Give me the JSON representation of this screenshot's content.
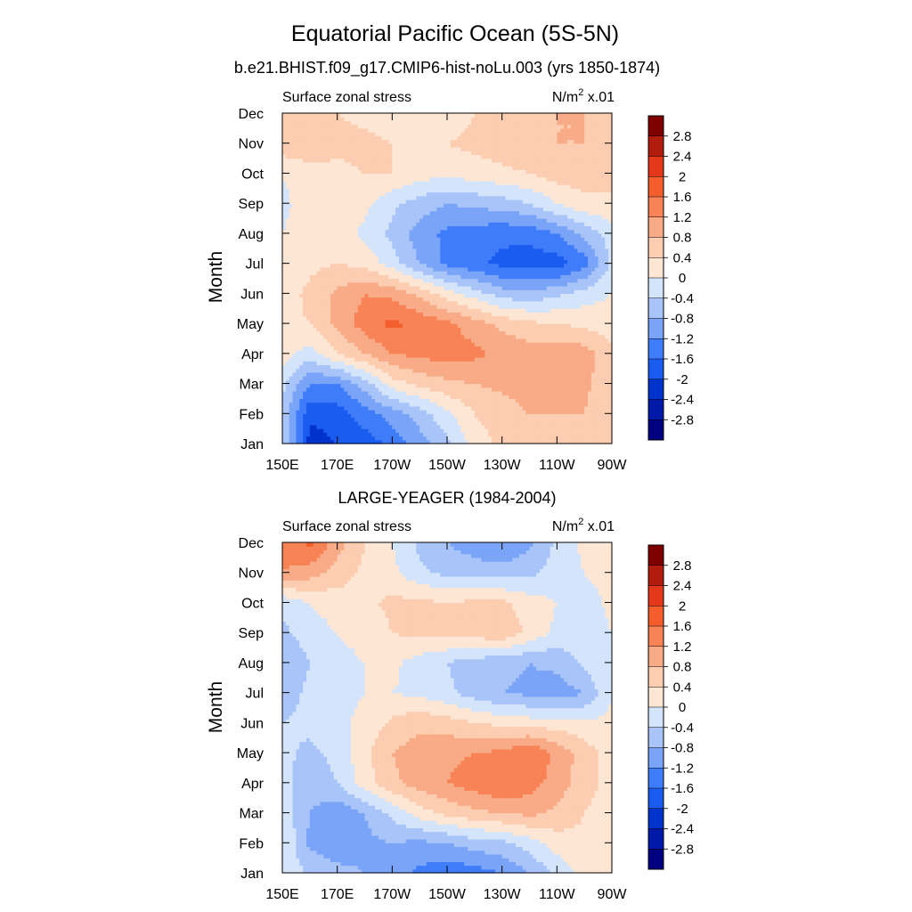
{
  "figure": {
    "title": "Equatorial Pacific Ocean (5S-5N)"
  },
  "colors": {
    "levels": [
      -2.8,
      -2.4,
      -2.0,
      -1.6,
      -1.2,
      -0.8,
      -0.4,
      0,
      0.4,
      0.8,
      1.2,
      1.6,
      2.0,
      2.4,
      2.8
    ],
    "labels": [
      "2.8",
      "2.4",
      "2",
      "1.6",
      "1.2",
      "0.8",
      "0.4",
      "0",
      "-0.4",
      "-0.8",
      "-1.2",
      "-1.6",
      "-2",
      "-2.4",
      "-2.8"
    ],
    "fills": [
      "#000080",
      "#0019a8",
      "#0033cc",
      "#1a5cf0",
      "#3f7cfa",
      "#7aa4f7",
      "#a8c4f8",
      "#d3e4fb",
      "#fde6d4",
      "#fccdb0",
      "#f8ab86",
      "#f78356",
      "#f35e2c",
      "#e5381a",
      "#b21c0c",
      "#800000"
    ]
  },
  "chart_data": [
    {
      "type": "heatmap",
      "subtitle": "b.e21.BHIST.f09_g17.CMIP6-hist-noLu.003 (yrs 1850-1874)",
      "left_label": "Surface zonal stress",
      "right_label_base": "N/m",
      "right_label_sup": "2",
      "right_label_tail": " x.01",
      "ylabel": "Month",
      "x_ticks": [
        "150E",
        "170E",
        "170W",
        "150W",
        "130W",
        "110W",
        "90W"
      ],
      "x_tick_lon": [
        150,
        170,
        190,
        210,
        230,
        250,
        270
      ],
      "xlim": [
        150,
        270
      ],
      "y_ticks": [
        "Jan",
        "Feb",
        "Mar",
        "Apr",
        "May",
        "Jun",
        "Jul",
        "Aug",
        "Sep",
        "Oct",
        "Nov",
        "Dec"
      ],
      "ylim": [
        1,
        12
      ],
      "x": [
        150,
        160,
        170,
        180,
        190,
        200,
        210,
        220,
        230,
        240,
        250,
        260,
        270
      ],
      "y": [
        1,
        2,
        3,
        4,
        5,
        6,
        7,
        8,
        9,
        10,
        11,
        12
      ],
      "z": [
        [
          -0.3,
          -2.2,
          -2.0,
          -1.8,
          -1.5,
          -1.0,
          -0.5,
          0.2,
          0.5,
          0.7,
          0.8,
          0.7,
          0.5
        ],
        [
          -0.5,
          -1.9,
          -1.8,
          -1.4,
          -1.0,
          -0.6,
          -0.1,
          0.4,
          0.6,
          0.8,
          0.8,
          0.8,
          0.5
        ],
        [
          -0.3,
          -1.2,
          -1.2,
          -0.6,
          0.2,
          0.5,
          0.7,
          0.8,
          0.9,
          1.0,
          1.0,
          0.9,
          0.5
        ],
        [
          0.2,
          -0.2,
          0.4,
          0.8,
          1.2,
          1.3,
          1.4,
          1.3,
          1.1,
          1.0,
          1.1,
          1.0,
          0.5
        ],
        [
          0.3,
          0.4,
          0.9,
          1.4,
          1.7,
          1.5,
          1.3,
          1.0,
          0.7,
          0.5,
          0.4,
          0.3,
          0.2
        ],
        [
          0.2,
          0.5,
          0.9,
          1.2,
          1.1,
          0.7,
          0.2,
          -0.2,
          -0.6,
          -0.7,
          -0.5,
          -0.2,
          0.0
        ],
        [
          0.1,
          0.3,
          0.4,
          0.3,
          -0.2,
          -0.8,
          -1.3,
          -1.5,
          -1.7,
          -1.8,
          -1.8,
          -1.4,
          -0.3
        ],
        [
          0.0,
          0.2,
          0.2,
          -0.1,
          -0.5,
          -1.0,
          -1.3,
          -1.4,
          -1.5,
          -1.5,
          -1.2,
          -0.7,
          -0.2
        ],
        [
          -0.1,
          0.2,
          0.2,
          0.1,
          -0.3,
          -0.6,
          -0.8,
          -0.7,
          -0.6,
          -0.4,
          0.0,
          0.3,
          0.3
        ],
        [
          0.0,
          0.3,
          0.3,
          0.4,
          0.4,
          0.2,
          0.1,
          0.2,
          0.3,
          0.4,
          0.6,
          0.6,
          0.6
        ],
        [
          0.7,
          0.6,
          0.5,
          0.5,
          0.4,
          0.3,
          0.4,
          0.5,
          0.6,
          0.7,
          0.8,
          0.8,
          0.7
        ],
        [
          0.6,
          0.5,
          0.4,
          0.3,
          0.2,
          0.1,
          0.2,
          0.4,
          0.5,
          0.7,
          0.8,
          0.8,
          0.7
        ]
      ]
    },
    {
      "type": "heatmap",
      "subtitle": "LARGE-YEAGER (1984-2004)",
      "left_label": "Surface zonal stress",
      "right_label_base": "N/m",
      "right_label_sup": "2",
      "right_label_tail": " x.01",
      "ylabel": "Month",
      "x_ticks": [
        "150E",
        "170E",
        "170W",
        "150W",
        "130W",
        "110W",
        "90W"
      ],
      "x_tick_lon": [
        150,
        170,
        190,
        210,
        230,
        250,
        270
      ],
      "xlim": [
        150,
        270
      ],
      "y_ticks": [
        "Jan",
        "Feb",
        "Mar",
        "Apr",
        "May",
        "Jun",
        "Jul",
        "Aug",
        "Sep",
        "Oct",
        "Nov",
        "Dec"
      ],
      "ylim": [
        1,
        12
      ],
      "x": [
        150,
        160,
        170,
        180,
        190,
        200,
        210,
        220,
        230,
        240,
        250,
        260,
        270
      ],
      "y": [
        1,
        2,
        3,
        4,
        5,
        6,
        7,
        8,
        9,
        10,
        11,
        12
      ],
      "z": [
        [
          0.0,
          -0.5,
          -0.7,
          -0.8,
          -1.0,
          -1.3,
          -1.5,
          -1.4,
          -1.2,
          -0.8,
          -0.3,
          0.2,
          0.3
        ],
        [
          0.0,
          -0.9,
          -1.0,
          -0.9,
          -0.8,
          -0.9,
          -0.8,
          -0.6,
          -0.5,
          -0.2,
          0.2,
          0.3,
          0.2
        ],
        [
          -0.1,
          -0.8,
          -1.1,
          -0.8,
          -0.3,
          0.2,
          0.5,
          0.7,
          0.8,
          0.9,
          0.7,
          0.4,
          0.2
        ],
        [
          -0.3,
          -0.6,
          -0.4,
          0.2,
          0.7,
          1.0,
          1.2,
          1.4,
          1.6,
          1.4,
          1.0,
          0.6,
          0.2
        ],
        [
          -0.3,
          -0.5,
          -0.3,
          0.3,
          0.8,
          1.0,
          1.1,
          1.2,
          1.3,
          1.6,
          1.1,
          0.6,
          0.2
        ],
        [
          -0.4,
          -0.3,
          -0.1,
          0.1,
          0.5,
          0.7,
          0.6,
          0.4,
          0.3,
          0.2,
          0.2,
          0.1,
          0.1
        ],
        [
          -0.6,
          -0.3,
          -0.1,
          0.0,
          0.0,
          -0.1,
          -0.3,
          -0.6,
          -0.8,
          -0.9,
          -1.0,
          -0.8,
          0.0
        ],
        [
          -0.8,
          -0.4,
          -0.1,
          0.0,
          0.1,
          -0.2,
          -0.4,
          -0.6,
          -0.7,
          -0.8,
          -0.7,
          -0.3,
          0.0
        ],
        [
          -0.5,
          -0.2,
          0.0,
          0.1,
          0.4,
          0.5,
          0.5,
          0.6,
          0.7,
          0.3,
          -0.1,
          -0.3,
          0.0
        ],
        [
          -0.3,
          0.0,
          0.2,
          0.3,
          0.5,
          0.5,
          0.4,
          0.5,
          0.5,
          0.2,
          0.0,
          -0.2,
          0.1
        ],
        [
          1.2,
          1.0,
          0.6,
          0.3,
          0.1,
          -0.3,
          -0.5,
          -0.6,
          -0.6,
          -0.5,
          -0.2,
          0.0,
          0.2
        ],
        [
          1.3,
          1.7,
          1.0,
          0.4,
          0.0,
          -0.5,
          -0.8,
          -1.0,
          -1.2,
          -0.9,
          -0.3,
          0.1,
          0.3
        ]
      ]
    }
  ]
}
